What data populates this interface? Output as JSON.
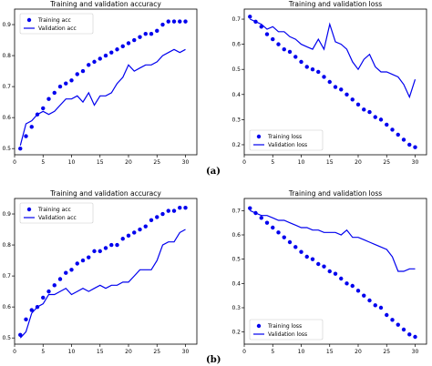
{
  "panel_labels": [
    "(a)",
    "(b)"
  ],
  "colors": {
    "series": "#0000ee",
    "axes": "#000000"
  },
  "chart_data": [
    {
      "type": "line",
      "title": "Training and validation accuracy",
      "xlabel": "",
      "ylabel": "",
      "xlim": [
        0,
        32
      ],
      "ylim": [
        0.48,
        0.95
      ],
      "xticks": [
        0,
        5,
        10,
        15,
        20,
        25,
        30
      ],
      "yticks": [
        0.5,
        0.6,
        0.7,
        0.8,
        0.9
      ],
      "ytick_labels": [
        "0.5",
        "0.6",
        "0.7",
        "0.8",
        "0.9"
      ],
      "legend": "upper-left",
      "grid": false,
      "series": [
        {
          "name": "Training acc",
          "style": "dots",
          "x": [
            1,
            2,
            3,
            4,
            5,
            6,
            7,
            8,
            9,
            10,
            11,
            12,
            13,
            14,
            15,
            16,
            17,
            18,
            19,
            20,
            21,
            22,
            23,
            24,
            25,
            26,
            27,
            28,
            29,
            30
          ],
          "values": [
            0.5,
            0.54,
            0.57,
            0.61,
            0.63,
            0.66,
            0.68,
            0.7,
            0.71,
            0.72,
            0.74,
            0.75,
            0.77,
            0.78,
            0.79,
            0.8,
            0.81,
            0.82,
            0.83,
            0.84,
            0.85,
            0.86,
            0.87,
            0.87,
            0.88,
            0.9,
            0.91,
            0.91,
            0.91,
            0.91
          ]
        },
        {
          "name": "Validation acc",
          "style": "line",
          "x": [
            1,
            2,
            3,
            4,
            5,
            6,
            7,
            8,
            9,
            10,
            11,
            12,
            13,
            14,
            15,
            16,
            17,
            18,
            19,
            20,
            21,
            22,
            23,
            24,
            25,
            26,
            27,
            28,
            29,
            30
          ],
          "values": [
            0.51,
            0.58,
            0.59,
            0.61,
            0.62,
            0.61,
            0.62,
            0.64,
            0.66,
            0.66,
            0.67,
            0.65,
            0.68,
            0.64,
            0.67,
            0.67,
            0.68,
            0.71,
            0.73,
            0.77,
            0.75,
            0.76,
            0.77,
            0.77,
            0.78,
            0.8,
            0.81,
            0.82,
            0.81,
            0.82
          ]
        }
      ]
    },
    {
      "type": "line",
      "title": "Training and validation loss",
      "xlabel": "",
      "ylabel": "",
      "xlim": [
        0,
        32
      ],
      "ylim": [
        0.16,
        0.74
      ],
      "xticks": [
        0,
        5,
        10,
        15,
        20,
        25,
        30
      ],
      "yticks": [
        0.2,
        0.3,
        0.4,
        0.5,
        0.6,
        0.7
      ],
      "ytick_labels": [
        "0.2",
        "0.3",
        "0.4",
        "0.5",
        "0.6",
        "0.7"
      ],
      "legend": "lower-left",
      "grid": false,
      "series": [
        {
          "name": "Training loss",
          "style": "dots",
          "x": [
            1,
            2,
            3,
            4,
            5,
            6,
            7,
            8,
            9,
            10,
            11,
            12,
            13,
            14,
            15,
            16,
            17,
            18,
            19,
            20,
            21,
            22,
            23,
            24,
            25,
            26,
            27,
            28,
            29,
            30
          ],
          "values": [
            0.71,
            0.69,
            0.67,
            0.64,
            0.62,
            0.6,
            0.58,
            0.57,
            0.55,
            0.53,
            0.51,
            0.5,
            0.49,
            0.47,
            0.45,
            0.43,
            0.42,
            0.4,
            0.38,
            0.36,
            0.34,
            0.33,
            0.31,
            0.3,
            0.28,
            0.26,
            0.24,
            0.22,
            0.2,
            0.19
          ]
        },
        {
          "name": "Validation loss",
          "style": "line",
          "x": [
            1,
            2,
            3,
            4,
            5,
            6,
            7,
            8,
            9,
            10,
            11,
            12,
            13,
            14,
            15,
            16,
            17,
            18,
            19,
            20,
            21,
            22,
            23,
            24,
            25,
            26,
            27,
            28,
            29,
            30
          ],
          "values": [
            0.7,
            0.69,
            0.68,
            0.66,
            0.67,
            0.65,
            0.65,
            0.63,
            0.62,
            0.6,
            0.59,
            0.58,
            0.62,
            0.58,
            0.68,
            0.61,
            0.6,
            0.58,
            0.53,
            0.5,
            0.54,
            0.56,
            0.51,
            0.49,
            0.49,
            0.48,
            0.47,
            0.44,
            0.39,
            0.46
          ]
        }
      ]
    },
    {
      "type": "line",
      "title": "Training and validation accuracy",
      "xlabel": "",
      "ylabel": "",
      "xlim": [
        0,
        32
      ],
      "ylim": [
        0.48,
        0.95
      ],
      "xticks": [
        0,
        5,
        10,
        15,
        20,
        25,
        30
      ],
      "yticks": [
        0.5,
        0.6,
        0.7,
        0.8,
        0.9
      ],
      "ytick_labels": [
        "0.5",
        "0.6",
        "0.7",
        "0.8",
        "0.9"
      ],
      "legend": "upper-left",
      "grid": false,
      "series": [
        {
          "name": "Training acc",
          "style": "dots",
          "x": [
            1,
            2,
            3,
            4,
            5,
            6,
            7,
            8,
            9,
            10,
            11,
            12,
            13,
            14,
            15,
            16,
            17,
            18,
            19,
            20,
            21,
            22,
            23,
            24,
            25,
            26,
            27,
            28,
            29,
            30
          ],
          "values": [
            0.51,
            0.56,
            0.59,
            0.6,
            0.63,
            0.65,
            0.67,
            0.69,
            0.71,
            0.72,
            0.74,
            0.75,
            0.76,
            0.78,
            0.78,
            0.79,
            0.8,
            0.8,
            0.82,
            0.83,
            0.84,
            0.85,
            0.86,
            0.88,
            0.89,
            0.9,
            0.91,
            0.91,
            0.92,
            0.92
          ]
        },
        {
          "name": "Validation acc",
          "style": "line",
          "x": [
            1,
            2,
            3,
            4,
            5,
            6,
            7,
            8,
            9,
            10,
            11,
            12,
            13,
            14,
            15,
            16,
            17,
            18,
            19,
            20,
            21,
            22,
            23,
            24,
            25,
            26,
            27,
            28,
            29,
            30
          ],
          "values": [
            0.5,
            0.52,
            0.58,
            0.6,
            0.61,
            0.64,
            0.64,
            0.65,
            0.66,
            0.64,
            0.65,
            0.66,
            0.65,
            0.66,
            0.67,
            0.66,
            0.67,
            0.67,
            0.68,
            0.68,
            0.7,
            0.72,
            0.72,
            0.72,
            0.75,
            0.8,
            0.81,
            0.81,
            0.84,
            0.85
          ]
        }
      ]
    },
    {
      "type": "line",
      "title": "Training and validation loss",
      "xlabel": "",
      "ylabel": "",
      "xlim": [
        0,
        32
      ],
      "ylim": [
        0.15,
        0.75
      ],
      "xticks": [
        0,
        5,
        10,
        15,
        20,
        25,
        30
      ],
      "yticks": [
        0.2,
        0.3,
        0.4,
        0.5,
        0.6,
        0.7
      ],
      "ytick_labels": [
        "0.2",
        "0.3",
        "0.4",
        "0.5",
        "0.6",
        "0.7"
      ],
      "legend": "lower-left",
      "grid": false,
      "series": [
        {
          "name": "Training loss",
          "style": "dots",
          "x": [
            1,
            2,
            3,
            4,
            5,
            6,
            7,
            8,
            9,
            10,
            11,
            12,
            13,
            14,
            15,
            16,
            17,
            18,
            19,
            20,
            21,
            22,
            23,
            24,
            25,
            26,
            27,
            28,
            29,
            30
          ],
          "values": [
            0.71,
            0.69,
            0.67,
            0.65,
            0.63,
            0.61,
            0.59,
            0.57,
            0.55,
            0.53,
            0.51,
            0.5,
            0.48,
            0.47,
            0.45,
            0.44,
            0.42,
            0.4,
            0.39,
            0.37,
            0.35,
            0.33,
            0.31,
            0.3,
            0.27,
            0.25,
            0.23,
            0.21,
            0.19,
            0.18
          ]
        },
        {
          "name": "Validation loss",
          "style": "line",
          "x": [
            1,
            2,
            3,
            4,
            5,
            6,
            7,
            8,
            9,
            10,
            11,
            12,
            13,
            14,
            15,
            16,
            17,
            18,
            19,
            20,
            21,
            22,
            23,
            24,
            25,
            26,
            27,
            28,
            29,
            30
          ],
          "values": [
            0.7,
            0.69,
            0.68,
            0.68,
            0.67,
            0.66,
            0.66,
            0.65,
            0.64,
            0.63,
            0.63,
            0.62,
            0.62,
            0.61,
            0.61,
            0.61,
            0.6,
            0.62,
            0.59,
            0.59,
            0.58,
            0.57,
            0.56,
            0.55,
            0.54,
            0.51,
            0.45,
            0.45,
            0.46,
            0.46
          ]
        }
      ]
    }
  ]
}
